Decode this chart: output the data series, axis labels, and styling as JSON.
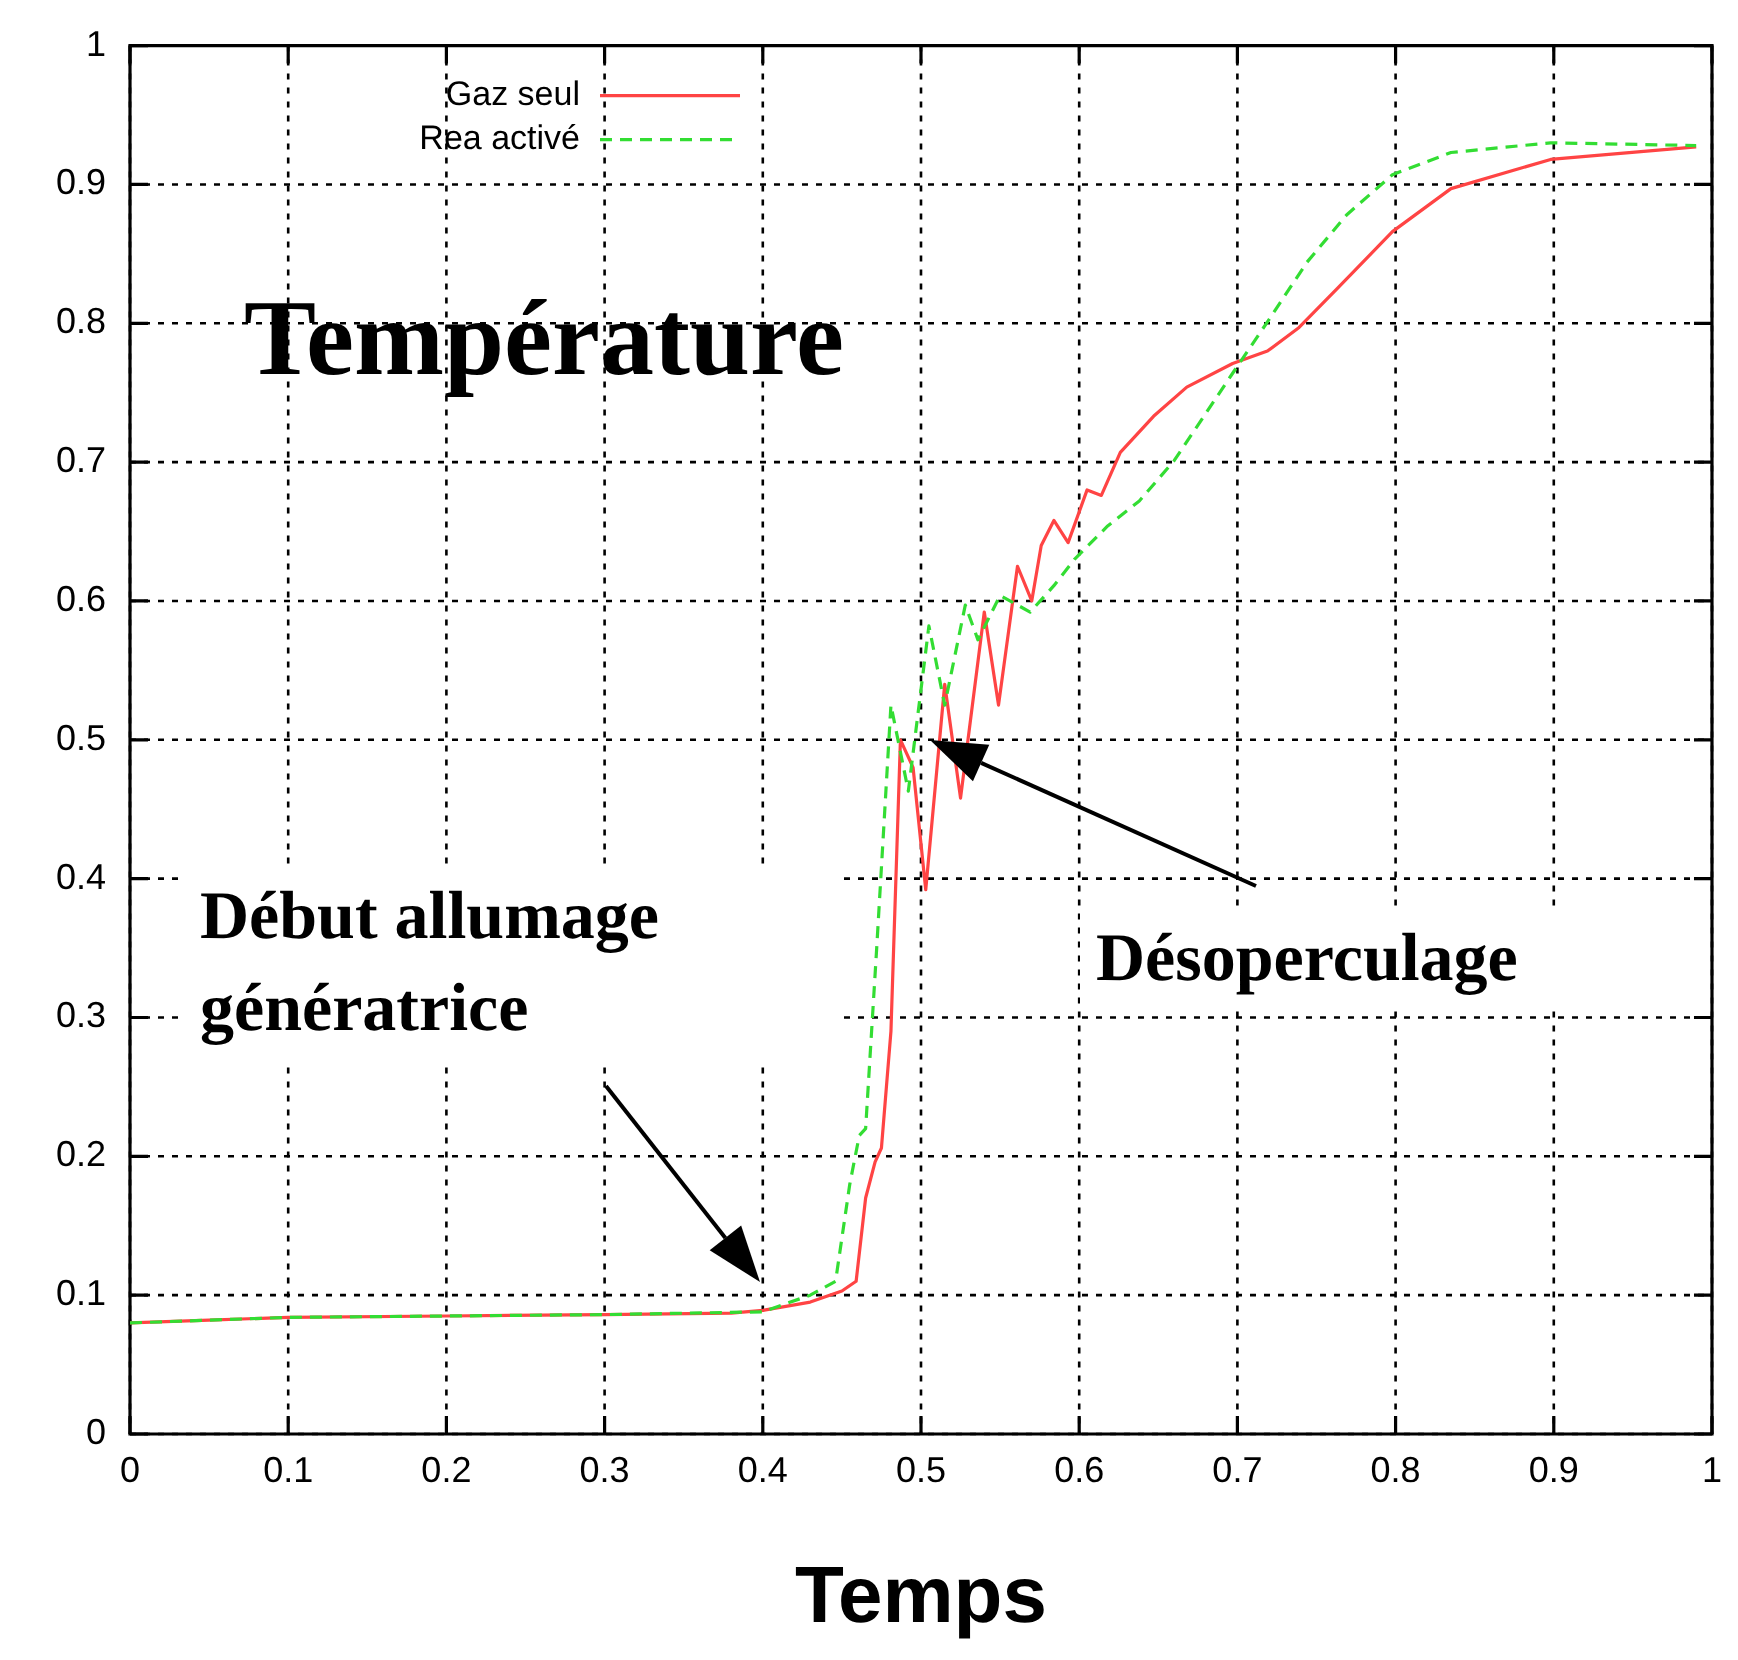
{
  "chart_data": {
    "type": "line",
    "title": "Température",
    "xlabel": "Temps",
    "xlim": [
      0,
      1
    ],
    "ylim": [
      0,
      1
    ],
    "xticks": [
      0,
      0.1,
      0.2,
      0.3,
      0.4,
      0.5,
      0.6,
      0.7,
      0.8,
      0.9,
      1
    ],
    "yticks": [
      0,
      0.1,
      0.2,
      0.3,
      0.4,
      0.5,
      0.6,
      0.7,
      0.8,
      0.9,
      1
    ],
    "grid": true,
    "legend": "top left",
    "marker": "none",
    "series": [
      {
        "name": "Gaz seul",
        "color": "#ff4444",
        "line_style": "solid",
        "x": [
          0,
          0.05,
          0.1,
          0.2,
          0.3,
          0.38,
          0.4,
          0.43,
          0.45,
          0.459,
          0.465,
          0.471,
          0.475,
          0.481,
          0.487,
          0.495,
          0.503,
          0.515,
          0.525,
          0.54,
          0.549,
          0.561,
          0.57,
          0.576,
          0.584,
          0.593,
          0.605,
          0.614,
          0.626,
          0.647,
          0.668,
          0.697,
          0.719,
          0.739,
          0.764,
          0.798,
          0.835,
          0.898,
          0.99
        ],
        "values": [
          0.08,
          0.082,
          0.084,
          0.085,
          0.086,
          0.087,
          0.089,
          0.095,
          0.103,
          0.11,
          0.17,
          0.196,
          0.206,
          0.29,
          0.5,
          0.48,
          0.392,
          0.54,
          0.458,
          0.592,
          0.525,
          0.625,
          0.6,
          0.64,
          0.658,
          0.642,
          0.68,
          0.676,
          0.707,
          0.733,
          0.754,
          0.771,
          0.78,
          0.797,
          0.826,
          0.866,
          0.897,
          0.918,
          0.927
        ]
      },
      {
        "name": "Rea activé",
        "color": "#33dd33",
        "line_style": "dashed",
        "x": [
          0,
          0.1,
          0.2,
          0.3,
          0.4,
          0.43,
          0.446,
          0.455,
          0.461,
          0.465,
          0.472,
          0.481,
          0.492,
          0.505,
          0.515,
          0.528,
          0.536,
          0.55,
          0.569,
          0.584,
          0.597,
          0.618,
          0.638,
          0.66,
          0.697,
          0.719,
          0.744,
          0.769,
          0.798,
          0.835,
          0.898,
          0.99
        ],
        "values": [
          0.08,
          0.084,
          0.085,
          0.086,
          0.088,
          0.1,
          0.11,
          0.18,
          0.215,
          0.22,
          0.35,
          0.525,
          0.463,
          0.582,
          0.525,
          0.597,
          0.572,
          0.604,
          0.592,
          0.611,
          0.63,
          0.654,
          0.672,
          0.701,
          0.764,
          0.801,
          0.844,
          0.878,
          0.907,
          0.923,
          0.93,
          0.928
        ]
      }
    ],
    "annotations": [
      "Début allumage génératrice",
      "Désoperculage"
    ]
  }
}
